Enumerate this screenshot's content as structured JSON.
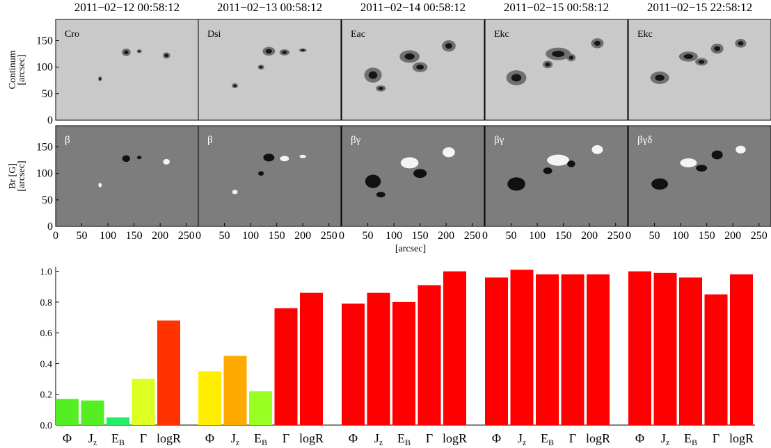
{
  "panels": {
    "dates": [
      "2011−02−12   00:58:12",
      "2011−02−13   00:58:12",
      "2011−02−14   00:58:12",
      "2011−02−15   00:58:12",
      "2011−02−15   22:58:12"
    ],
    "classes": [
      "Cro",
      "Dsi",
      "Eac",
      "Ekc",
      "Ekc"
    ],
    "mag_classes": [
      "β",
      "β",
      "βγ",
      "βγ",
      "βγδ"
    ],
    "row_labels": [
      [
        "Continum",
        "[arcsec]"
      ],
      [
        "Br [G]",
        "[arcsec]"
      ]
    ],
    "x_label": "[arcsec]",
    "xlim": [
      0,
      273
    ],
    "xticks": [
      0,
      50,
      100,
      150,
      200,
      250
    ],
    "ylim": [
      0,
      190
    ],
    "yticks": [
      0,
      50,
      100,
      150
    ]
  },
  "chart_data": {
    "type": "bar",
    "categories": [
      {
        "main": "Φ"
      },
      {
        "main": "J",
        "sub": "z"
      },
      {
        "main": "E",
        "sub": "B"
      },
      {
        "main": "Γ"
      },
      {
        "main": "logR"
      }
    ],
    "groups": [
      {
        "values": [
          0.17,
          0.16,
          0.05,
          0.3,
          0.68
        ],
        "colors": [
          "#55ee22",
          "#55ee22",
          "#22ee66",
          "#ddff22",
          "#ff3300"
        ]
      },
      {
        "values": [
          0.35,
          0.45,
          0.22,
          0.76,
          0.86
        ],
        "colors": [
          "#ffee00",
          "#ffaa00",
          "#99ff22",
          "#ff0000",
          "#ff0000"
        ]
      },
      {
        "values": [
          0.79,
          0.86,
          0.8,
          0.91,
          1.0
        ],
        "colors": [
          "#ff0000",
          "#ff0000",
          "#ff0000",
          "#ff0000",
          "#ff0000"
        ]
      },
      {
        "values": [
          0.96,
          1.01,
          0.98,
          0.98,
          0.98
        ],
        "colors": [
          "#ff0000",
          "#ff0000",
          "#ff0000",
          "#ff0000",
          "#ff0000"
        ]
      },
      {
        "values": [
          1.0,
          0.99,
          0.96,
          0.85,
          0.98
        ],
        "colors": [
          "#ff0000",
          "#ff0000",
          "#ff0000",
          "#ff0000",
          "#ff0000"
        ]
      }
    ],
    "ylim": [
      0,
      1.03
    ],
    "yticks": [
      {
        "value": 0,
        "label": "0.0"
      },
      {
        "value": 0.2,
        "label": "0.2"
      },
      {
        "value": 0.4,
        "label": "0.4"
      },
      {
        "value": 0.6,
        "label": "0.6"
      },
      {
        "value": 0.8,
        "label": "0.8"
      },
      {
        "value": 1,
        "label": "1.0"
      }
    ]
  }
}
